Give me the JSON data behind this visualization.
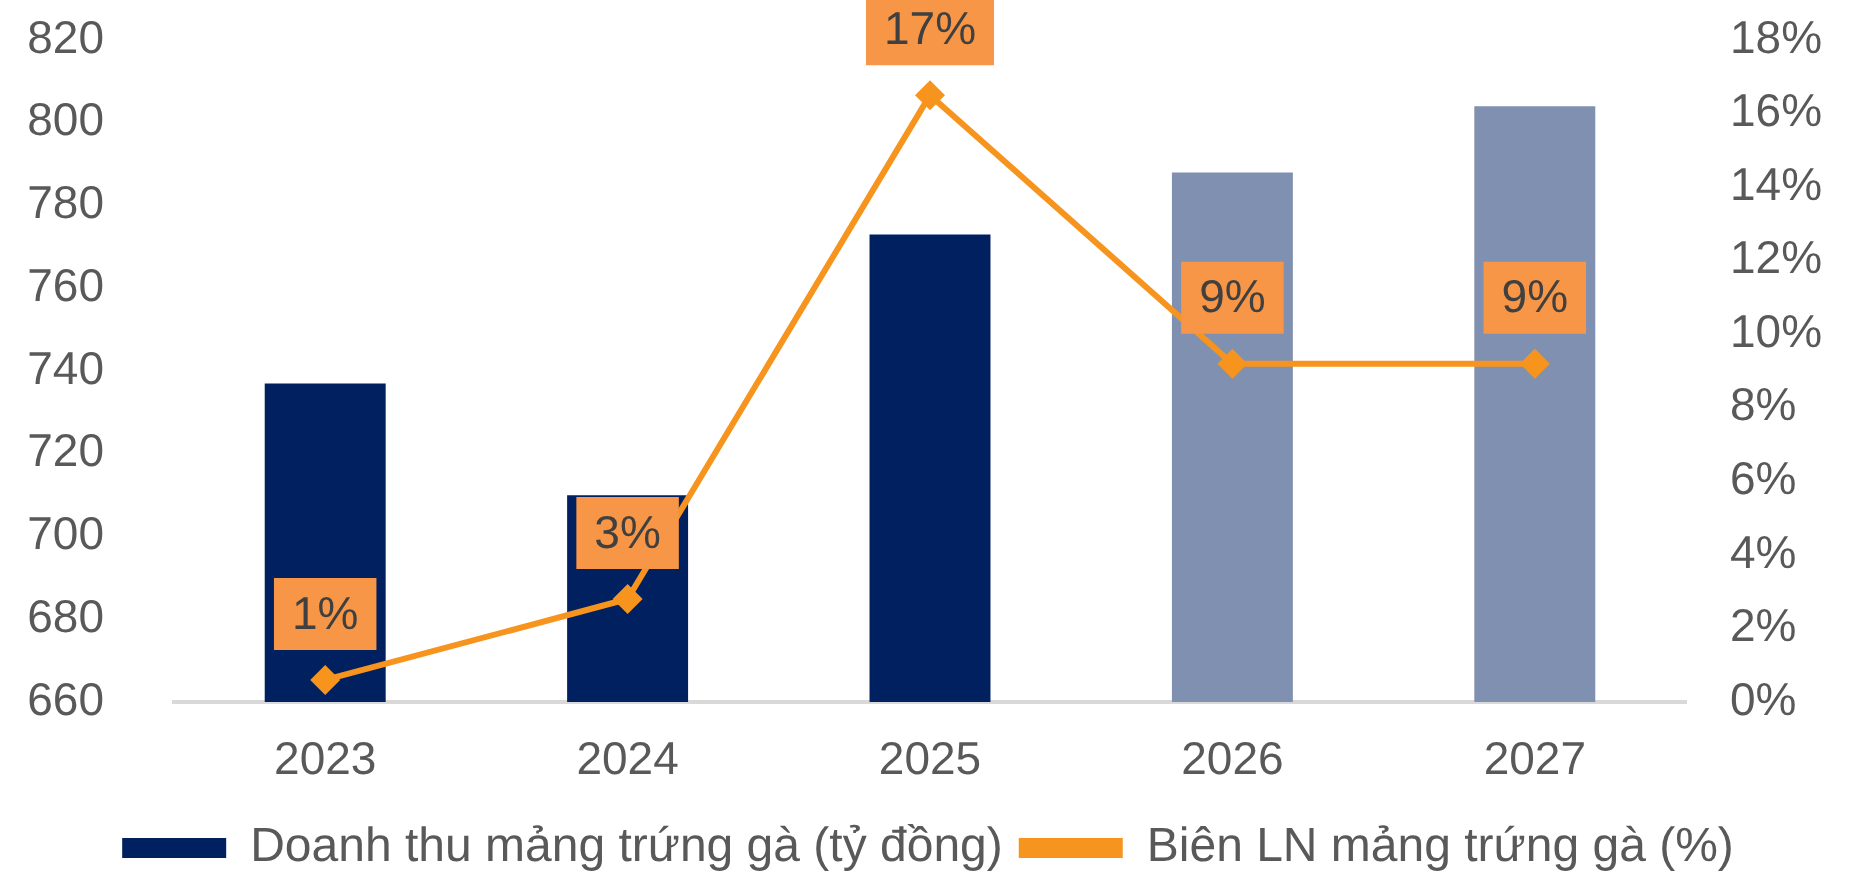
{
  "chart_data": {
    "type": "bar",
    "categories": [
      "2023",
      "2024",
      "2025",
      "2026",
      "2027"
    ],
    "series": [
      {
        "name": "Doanh thu mảng trứng gà (tỷ đồng)",
        "color": "#002060",
        "colors": [
          "#002060",
          "#002060",
          "#002060",
          "#8090b0",
          "#8090b0"
        ],
        "values": [
          737,
          710,
          773,
          788,
          804
        ]
      },
      {
        "name": "Biên LN mảng trứng gà (%)",
        "type": "line",
        "axis": "y2",
        "color": "#f7941d",
        "values": [
          0.6,
          2.8,
          16.5,
          9.2,
          9.2
        ],
        "value_labels": [
          "1%",
          "3%",
          "17%",
          "9%",
          "9%"
        ]
      }
    ],
    "ylim": [
      660,
      820
    ],
    "yticks": [
      660,
      680,
      700,
      720,
      740,
      760,
      780,
      800,
      820
    ],
    "y2lim": [
      0,
      18
    ],
    "y2ticks": [
      {
        "value": 0,
        "label": "0%"
      },
      {
        "value": 2,
        "label": "2%"
      },
      {
        "value": 4,
        "label": "4%"
      },
      {
        "value": 6,
        "label": "6%"
      },
      {
        "value": 8,
        "label": "8%"
      },
      {
        "value": 10,
        "label": "10%"
      },
      {
        "value": 12,
        "label": "12%"
      },
      {
        "value": 14,
        "label": "14%"
      },
      {
        "value": 16,
        "label": "16%"
      },
      {
        "value": 18,
        "label": "18%"
      }
    ],
    "marker": "diamond",
    "legend": "bottom"
  }
}
